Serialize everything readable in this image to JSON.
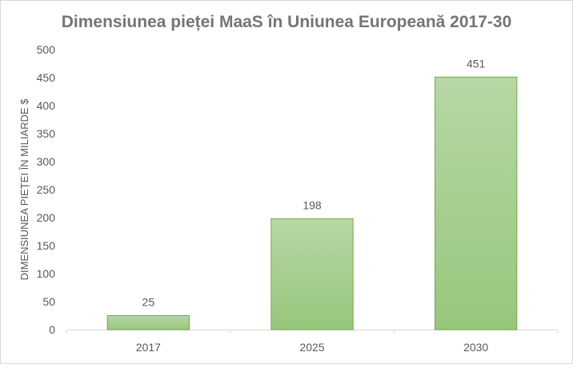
{
  "chart_data": {
    "type": "bar",
    "title": "Dimensiunea pieței MaaS în Uniunea Europeană 2017-30",
    "xlabel": "",
    "ylabel": "DIMENSIUNEA PIEȚEI ÎN MILIARDE $",
    "categories": [
      "2017",
      "2025",
      "2030"
    ],
    "values": [
      25,
      198,
      451
    ],
    "data_labels": [
      "25",
      "198",
      "451"
    ],
    "ylim": [
      0,
      500
    ],
    "yticks": [
      0,
      50,
      100,
      150,
      200,
      250,
      300,
      350,
      400,
      450,
      500
    ],
    "grid": false,
    "legend": "none",
    "colors": {
      "bar_top": "#b7d7a4",
      "bar_bottom": "#98c67c",
      "bar_border": "#70ad47",
      "text": "#595959",
      "axis": "#d9d9d9"
    }
  }
}
